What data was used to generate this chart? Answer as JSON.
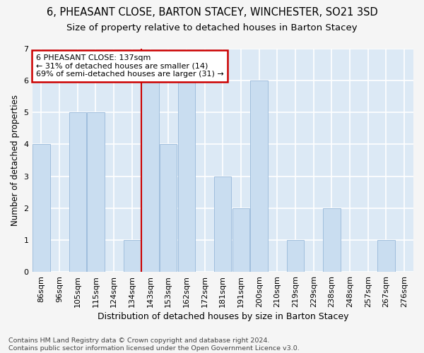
{
  "title1": "6, PHEASANT CLOSE, BARTON STACEY, WINCHESTER, SO21 3SD",
  "title2": "Size of property relative to detached houses in Barton Stacey",
  "xlabel": "Distribution of detached houses by size in Barton Stacey",
  "ylabel": "Number of detached properties",
  "footnote": "Contains HM Land Registry data © Crown copyright and database right 2024.\nContains public sector information licensed under the Open Government Licence v3.0.",
  "categories": [
    "86sqm",
    "96sqm",
    "105sqm",
    "115sqm",
    "124sqm",
    "134sqm",
    "143sqm",
    "153sqm",
    "162sqm",
    "172sqm",
    "181sqm",
    "191sqm",
    "200sqm",
    "210sqm",
    "219sqm",
    "229sqm",
    "238sqm",
    "248sqm",
    "257sqm",
    "267sqm",
    "276sqm"
  ],
  "values": [
    4,
    0,
    5,
    5,
    0,
    1,
    6,
    4,
    6,
    0,
    3,
    2,
    6,
    0,
    1,
    0,
    2,
    0,
    0,
    1,
    0
  ],
  "bar_color": "#c9ddf0",
  "bar_edge_color": "#a0bedd",
  "red_line_index": 5,
  "annotation_text": "6 PHEASANT CLOSE: 137sqm\n← 31% of detached houses are smaller (14)\n69% of semi-detached houses are larger (31) →",
  "annotation_box_color": "#ffffff",
  "annotation_box_edge": "#cc0000",
  "ylim": [
    0,
    7
  ],
  "yticks": [
    0,
    1,
    2,
    3,
    4,
    5,
    6,
    7
  ],
  "bg_color": "#dce9f5",
  "grid_color": "#ffffff",
  "title1_fontsize": 10.5,
  "title2_fontsize": 9.5,
  "xlabel_fontsize": 9,
  "ylabel_fontsize": 8.5,
  "tick_fontsize": 8,
  "annot_fontsize": 8
}
